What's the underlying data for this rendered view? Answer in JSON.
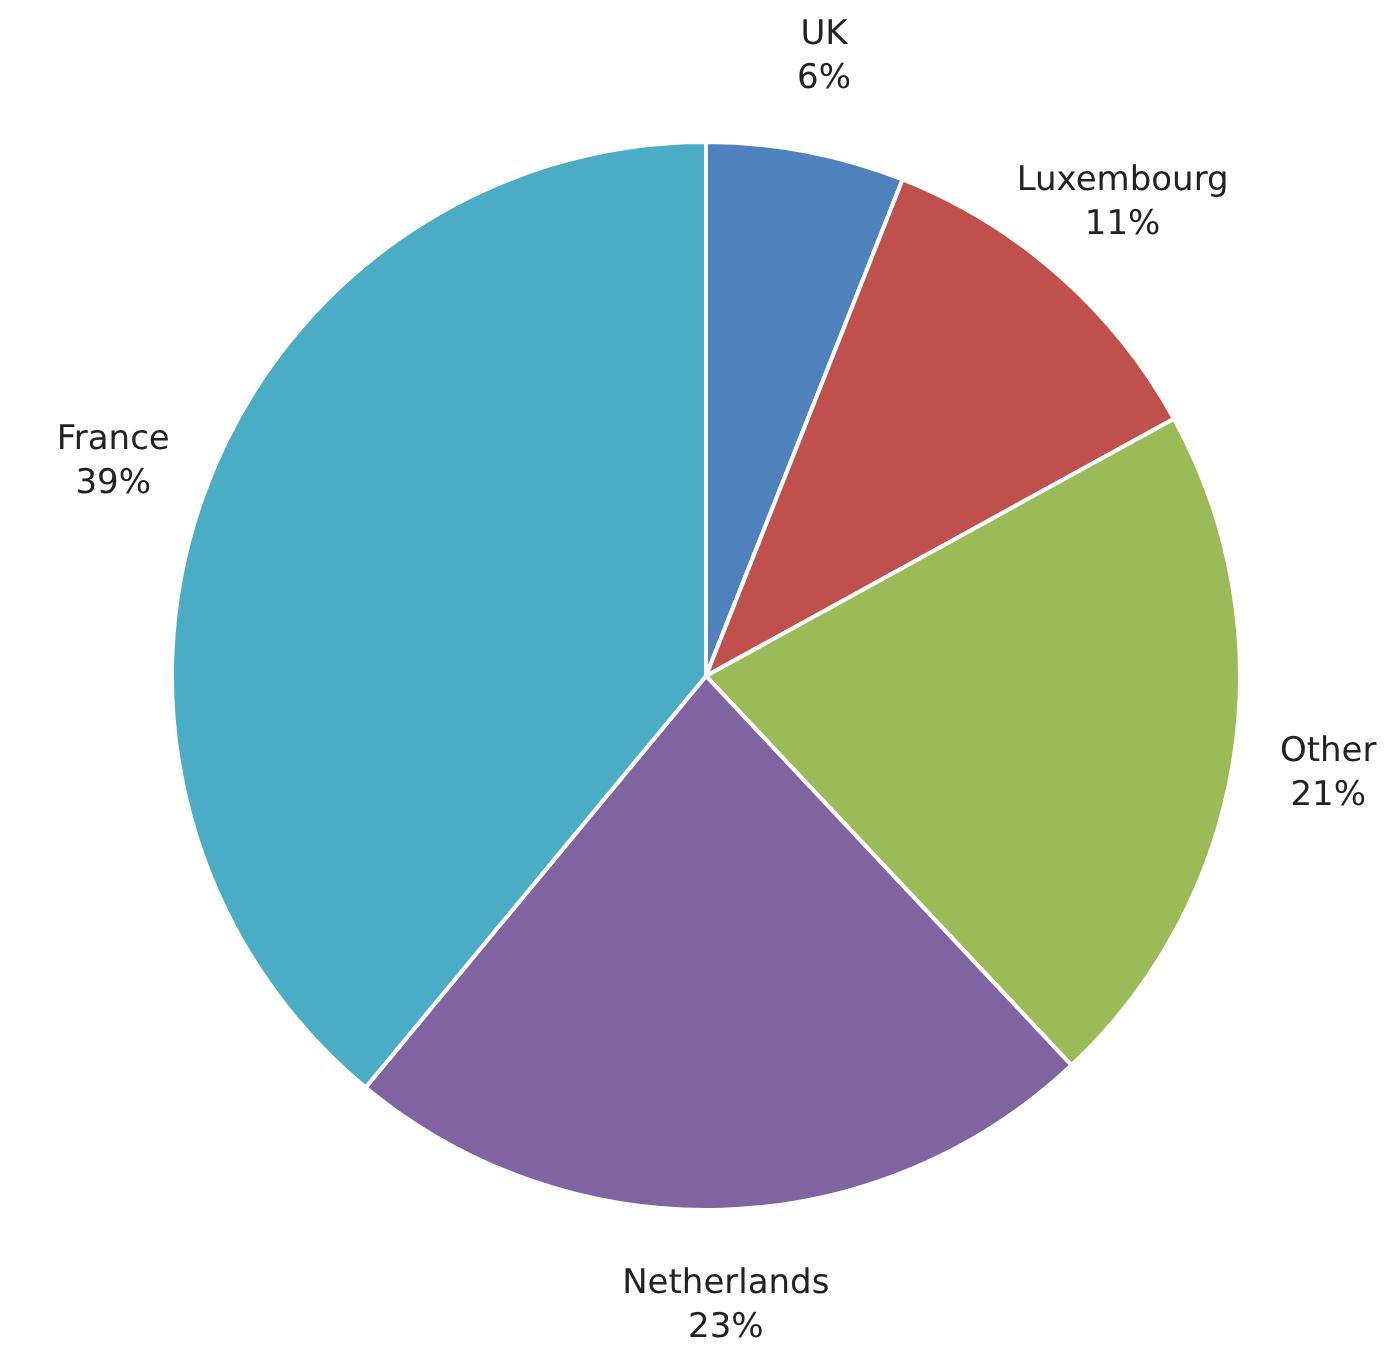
{
  "chart_data": {
    "type": "pie",
    "categories": [
      "UK",
      "Luxembourg",
      "Other",
      "Netherlands",
      "France"
    ],
    "values": [
      6,
      11,
      21,
      23,
      39
    ],
    "colors": [
      "#4f81bd",
      "#c0504d",
      "#9bbb59",
      "#8064a2",
      "#4bacc6"
    ],
    "value_labels": [
      "6%",
      "11%",
      "21%",
      "23%",
      "39%"
    ],
    "legend": false
  }
}
